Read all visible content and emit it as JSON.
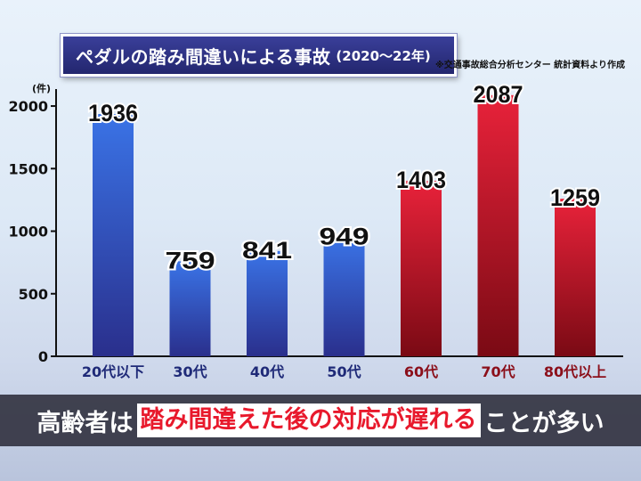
{
  "title": {
    "main": "ペダルの踏み間違いによる事故",
    "sub": "(2020〜22年)"
  },
  "source": "※交通事故総合分析センター 統計資料より作成",
  "chart_data": {
    "type": "bar",
    "ylabel": "(件)",
    "categories": [
      "20代以下",
      "30代",
      "40代",
      "50代",
      "60代",
      "70代",
      "80代以上"
    ],
    "values": [
      1936,
      759,
      841,
      949,
      1403,
      2087,
      1259
    ],
    "yticks": [
      "0",
      "500",
      "1000",
      "1500",
      "2000"
    ],
    "ylim": [
      0,
      2100
    ],
    "colors": {
      "blue_top": "#3a73e6",
      "blue_bottom": "#2a2f8c",
      "red_top": "#e8223a",
      "red_bottom": "#7a0a14",
      "blue_label": "#1f2a78",
      "red_label": "#8b0f1a"
    },
    "red_from_index": 4,
    "grid": false
  },
  "caption": {
    "part1": "高齢者は",
    "highlight": "踏み間違えた後の対応が遅れる",
    "part2": "ことが多い"
  }
}
